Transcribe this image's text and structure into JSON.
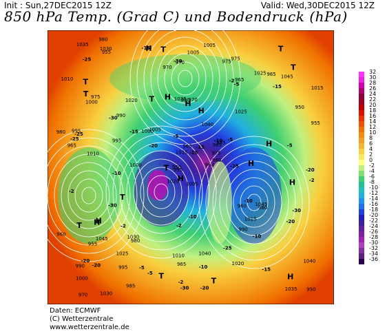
{
  "header": {
    "init": "Init : Sun,27DEC2015 12Z",
    "valid": "Valid: Wed,30DEC2015 12Z",
    "title": "850 hPa Temp. (Grad C) und Bodendruck (hPa)"
  },
  "credits": [
    "Daten: ECMWF",
    "(C) Wetterzentrale",
    "www.wetterzentrale.de"
  ],
  "legend": {
    "labels": [
      "32",
      "30",
      "28",
      "26",
      "24",
      "22",
      "20",
      "18",
      "16",
      "14",
      "12",
      "10",
      "8",
      "6",
      "4",
      "2",
      "0",
      "-2",
      "-4",
      "-6",
      "-8",
      "-10",
      "-12",
      "-14",
      "-16",
      "-18",
      "-20",
      "-22",
      "-24",
      "-26",
      "-28",
      "-30",
      "-32",
      "-34",
      "-36"
    ],
    "colors": [
      "#ff33ff",
      "#f020e0",
      "#d000b0",
      "#b00070",
      "#900040",
      "#a00020",
      "#c00000",
      "#e01000",
      "#f03000",
      "#f05000",
      "#f07000",
      "#f48c10",
      "#f4a020",
      "#f4b830",
      "#f8d040",
      "#f8e860",
      "#ffff80",
      "#c0f080",
      "#80e070",
      "#40d070",
      "#20c090",
      "#20c0c0",
      "#20b0e0",
      "#2090f0",
      "#2070f0",
      "#2040e0",
      "#2020c0",
      "#4020a0",
      "#6020a0",
      "#8020a0",
      "#a020b0",
      "#b040c0",
      "#8030a0",
      "#602080",
      "#300050"
    ]
  },
  "map": {
    "isobars": [
      "1005",
      "1000",
      "995",
      "990",
      "985",
      "980",
      "975",
      "970",
      "965",
      "960",
      "955",
      "950",
      "1010",
      "1015",
      "1020",
      "1025",
      "1030",
      "1035",
      "1040",
      "1045"
    ],
    "temps": [
      "-2",
      "-5",
      "-10",
      "-15",
      "-20",
      "-25",
      "-30"
    ],
    "high_letter": "H",
    "low_letter": "T"
  }
}
